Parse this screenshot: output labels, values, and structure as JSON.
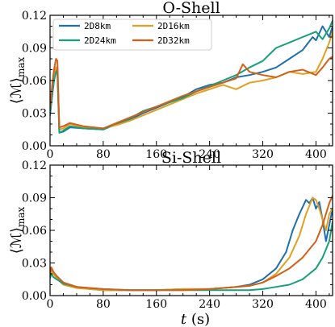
{
  "colors": {
    "2D8km": "#1f6fae",
    "2D16km": "#e0a021",
    "2D24km": "#17a07a",
    "2D32km": "#d2601a"
  },
  "chart_data": [
    {
      "type": "line",
      "title": "O-Shell",
      "xlabel": "",
      "ylabel": "⟨ℳ⟩max",
      "ylabel_main": "⟨ℳ⟩",
      "ylabel_sub": "max",
      "xlim": [
        0,
        425
      ],
      "ylim": [
        0,
        0.12
      ],
      "xticks": [
        0,
        80,
        160,
        240,
        320,
        400
      ],
      "yticks": [
        0.0,
        0.03,
        0.06,
        0.09,
        0.12
      ],
      "ytick_labels": [
        "0.00",
        "0.03",
        "0.06",
        "0.09",
        "0.12"
      ],
      "legend": {
        "placement": "top-left",
        "entries": [
          "2D8km",
          "2D16km",
          "2D24km",
          "2D32km"
        ]
      },
      "series": [
        {
          "name": "2D8km",
          "x": [
            0,
            3,
            6,
            9,
            11,
            14,
            20,
            30,
            50,
            80,
            100,
            120,
            140,
            160,
            180,
            200,
            220,
            240,
            260,
            280,
            300,
            320,
            340,
            360,
            380,
            395,
            400,
            410,
            420,
            425
          ],
          "y": [
            0.028,
            0.045,
            0.06,
            0.07,
            0.072,
            0.012,
            0.013,
            0.017,
            0.016,
            0.015,
            0.02,
            0.024,
            0.03,
            0.035,
            0.04,
            0.045,
            0.052,
            0.056,
            0.058,
            0.063,
            0.065,
            0.068,
            0.072,
            0.08,
            0.088,
            0.1,
            0.097,
            0.11,
            0.1,
            0.11
          ]
        },
        {
          "name": "2D16km",
          "x": [
            0,
            3,
            6,
            9,
            11,
            14,
            20,
            30,
            50,
            80,
            100,
            120,
            140,
            160,
            180,
            200,
            220,
            240,
            260,
            280,
            300,
            320,
            340,
            360,
            380,
            400,
            410,
            420,
            425
          ],
          "y": [
            0.03,
            0.05,
            0.065,
            0.072,
            0.07,
            0.015,
            0.016,
            0.02,
            0.017,
            0.016,
            0.019,
            0.023,
            0.028,
            0.033,
            0.038,
            0.043,
            0.048,
            0.052,
            0.056,
            0.052,
            0.058,
            0.06,
            0.063,
            0.068,
            0.066,
            0.068,
            0.08,
            0.095,
            0.105
          ]
        },
        {
          "name": "2D24km",
          "x": [
            0,
            3,
            6,
            9,
            11,
            14,
            20,
            30,
            50,
            80,
            100,
            120,
            140,
            160,
            180,
            200,
            220,
            240,
            260,
            280,
            300,
            320,
            340,
            360,
            380,
            400,
            410,
            420,
            425
          ],
          "y": [
            0.03,
            0.05,
            0.06,
            0.068,
            0.066,
            0.012,
            0.014,
            0.018,
            0.016,
            0.015,
            0.021,
            0.025,
            0.032,
            0.036,
            0.04,
            0.044,
            0.05,
            0.055,
            0.06,
            0.065,
            0.072,
            0.078,
            0.09,
            0.095,
            0.1,
            0.105,
            0.098,
            0.108,
            0.115
          ]
        },
        {
          "name": "2D32km",
          "x": [
            0,
            3,
            6,
            9,
            11,
            14,
            20,
            30,
            50,
            80,
            100,
            120,
            140,
            160,
            180,
            200,
            220,
            240,
            260,
            280,
            290,
            300,
            320,
            340,
            360,
            380,
            400,
            410,
            420,
            425
          ],
          "y": [
            0.035,
            0.055,
            0.07,
            0.08,
            0.078,
            0.017,
            0.018,
            0.021,
            0.018,
            0.016,
            0.021,
            0.026,
            0.031,
            0.036,
            0.041,
            0.046,
            0.05,
            0.054,
            0.058,
            0.062,
            0.075,
            0.068,
            0.065,
            0.063,
            0.068,
            0.07,
            0.065,
            0.072,
            0.08,
            0.082
          ]
        }
      ]
    },
    {
      "type": "line",
      "title": "Si-Shell",
      "xlabel": "t (s)",
      "xlabel_var": "t",
      "xlabel_unit": " (s)",
      "ylabel": "⟨ℳ⟩max",
      "ylabel_main": "⟨ℳ⟩",
      "ylabel_sub": "max",
      "xlim": [
        0,
        425
      ],
      "ylim": [
        0,
        0.12
      ],
      "xticks": [
        0,
        80,
        160,
        240,
        320,
        400
      ],
      "yticks": [
        0.0,
        0.03,
        0.06,
        0.09,
        0.12
      ],
      "ytick_labels": [
        "0.00",
        "0.03",
        "0.06",
        "0.09",
        "0.12"
      ],
      "series": [
        {
          "name": "2D8km",
          "x": [
            0,
            2,
            5,
            10,
            20,
            40,
            60,
            80,
            120,
            160,
            200,
            240,
            280,
            300,
            320,
            340,
            355,
            365,
            375,
            385,
            390,
            395,
            400,
            405,
            410,
            415,
            420,
            425
          ],
          "y": [
            0.02,
            0.025,
            0.02,
            0.018,
            0.012,
            0.008,
            0.006,
            0.005,
            0.005,
            0.005,
            0.006,
            0.006,
            0.008,
            0.01,
            0.015,
            0.025,
            0.04,
            0.06,
            0.075,
            0.088,
            0.085,
            0.09,
            0.08,
            0.086,
            0.07,
            0.05,
            0.065,
            0.08
          ]
        },
        {
          "name": "2D16km",
          "x": [
            0,
            2,
            5,
            10,
            20,
            40,
            60,
            80,
            120,
            160,
            200,
            240,
            280,
            300,
            320,
            340,
            360,
            375,
            385,
            395,
            400,
            405,
            410,
            415,
            420,
            425
          ],
          "y": [
            0.018,
            0.024,
            0.02,
            0.016,
            0.01,
            0.007,
            0.006,
            0.005,
            0.005,
            0.005,
            0.006,
            0.006,
            0.008,
            0.009,
            0.012,
            0.02,
            0.035,
            0.055,
            0.075,
            0.09,
            0.088,
            0.08,
            0.07,
            0.06,
            0.075,
            0.08
          ]
        },
        {
          "name": "2D24km",
          "x": [
            0,
            2,
            5,
            10,
            20,
            40,
            60,
            80,
            120,
            160,
            200,
            240,
            280,
            300,
            320,
            340,
            360,
            380,
            400,
            410,
            420,
            425
          ],
          "y": [
            0.016,
            0.02,
            0.017,
            0.015,
            0.011,
            0.008,
            0.007,
            0.006,
            0.005,
            0.005,
            0.005,
            0.005,
            0.005,
            0.005,
            0.006,
            0.008,
            0.01,
            0.015,
            0.025,
            0.035,
            0.05,
            0.068
          ]
        },
        {
          "name": "2D32km",
          "x": [
            0,
            2,
            5,
            10,
            20,
            40,
            60,
            80,
            120,
            160,
            200,
            240,
            280,
            300,
            320,
            340,
            360,
            380,
            400,
            410,
            420,
            425
          ],
          "y": [
            0.02,
            0.026,
            0.022,
            0.018,
            0.012,
            0.008,
            0.007,
            0.006,
            0.005,
            0.005,
            0.005,
            0.006,
            0.008,
            0.009,
            0.012,
            0.018,
            0.025,
            0.035,
            0.05,
            0.065,
            0.085,
            0.092
          ]
        }
      ]
    }
  ]
}
